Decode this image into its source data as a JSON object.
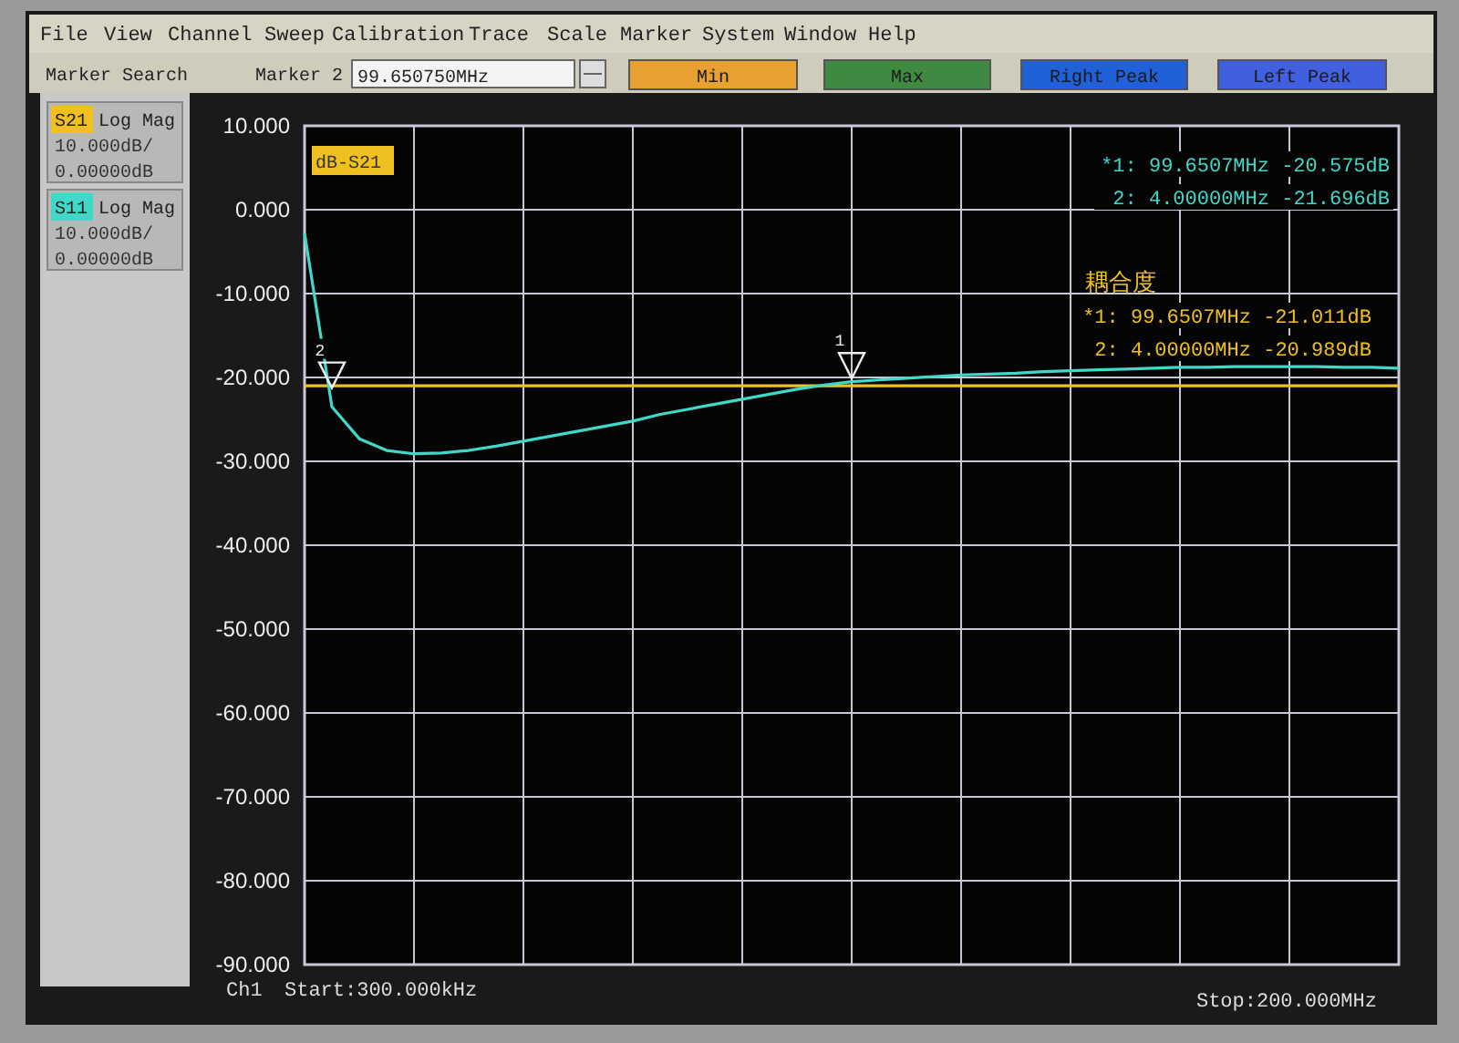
{
  "chart_data": {
    "type": "line",
    "categories": [
      null,
      null,
      null,
      null,
      null,
      null,
      null,
      null,
      null,
      null,
      null,
      null,
      null,
      null,
      null,
      null,
      null,
      null,
      null,
      null,
      null,
      null,
      null,
      null,
      null,
      null,
      null,
      null,
      null,
      null,
      null,
      null,
      null,
      null,
      null,
      null,
      null,
      null,
      null,
      null,
      null
    ],
    "ylim": [
      -90,
      10
    ],
    "yticks": [
      {
        "value": 10,
        "label": "10.000"
      },
      {
        "value": 0,
        "label": "0.000"
      },
      {
        "value": -10,
        "label": "-10.000"
      },
      {
        "value": -20,
        "label": "-20.000"
      },
      {
        "value": -30,
        "label": "-30.000"
      },
      {
        "value": -40,
        "label": "-40.000"
      },
      {
        "value": -50,
        "label": "-50.000"
      },
      {
        "value": -60,
        "label": "-60.000"
      },
      {
        "value": -70,
        "label": "-70.000"
      },
      {
        "value": -80,
        "label": "-80.000"
      },
      {
        "value": -90,
        "label": "-90.000"
      }
    ],
    "grid": true,
    "legend": "left",
    "series": [
      {
        "name": "S21",
        "color": "#f0c020",
        "values": [
          -21.0,
          -21.0,
          -21.0,
          -21.0,
          -21.0,
          -21.0,
          -21.0,
          -21.0,
          -21.0,
          -21.0,
          -21.0,
          -21.0,
          -21.0,
          -21.0,
          -21.0,
          -21.0,
          -21.0,
          -21.0,
          -21.0,
          -21.0,
          -21.0,
          -21.0,
          -21.0,
          -21.0,
          -21.0,
          -21.0,
          -21.0,
          -21.0,
          -21.0,
          -21.0,
          -21.0,
          -21.0,
          -21.0,
          -21.0,
          -21.0,
          -21.0,
          -21.0,
          -21.0,
          -21.0,
          -21.0,
          -21.0
        ]
      },
      {
        "name": "S11",
        "color": "#40d8c8",
        "values": [
          -2.8,
          -23.5,
          -27.3,
          -28.7,
          -29.1,
          -29.0,
          -28.7,
          -28.2,
          -27.6,
          -27.0,
          -26.4,
          -25.8,
          -25.2,
          -24.4,
          -23.8,
          -23.2,
          -22.6,
          -22.0,
          -21.4,
          -20.9,
          -20.5,
          -20.3,
          -20.1,
          -19.9,
          -19.7,
          -19.6,
          -19.5,
          -19.3,
          -19.2,
          -19.1,
          -19.0,
          -18.9,
          -18.8,
          -18.8,
          -18.7,
          -18.7,
          -18.7,
          -18.7,
          -18.8,
          -18.8,
          -18.9
        ]
      }
    ],
    "annotations": [
      "File",
      "View",
      "Channel",
      "Sweep",
      "Calibration",
      "Trace",
      "Scale",
      "Marker",
      "System",
      "Window",
      "Help",
      "Marker Search",
      "Marker 2",
      "99.650750MHz",
      "Min",
      "Max",
      "Right Peak",
      "Left Peak",
      "Log Mag",
      "10.000dB/",
      "0.00000dB",
      "Log Mag",
      "10.000dB/",
      "0.00000dB",
      "dB-S21",
      "*1: 99.6507MHz -20.575dB",
      "2: 4.00000MHz -21.696dB",
      "耦合度",
      "*1: 99.6507MHz -21.011dB",
      "2: 4.00000MHz -20.989dB",
      "Ch1",
      "Start:300.000kHz",
      "Stop:200.000MHz",
      {
        "text": "1",
        "y": -20.575
      },
      {
        "text": "2",
        "y": -21.696
      }
    ]
  }
}
